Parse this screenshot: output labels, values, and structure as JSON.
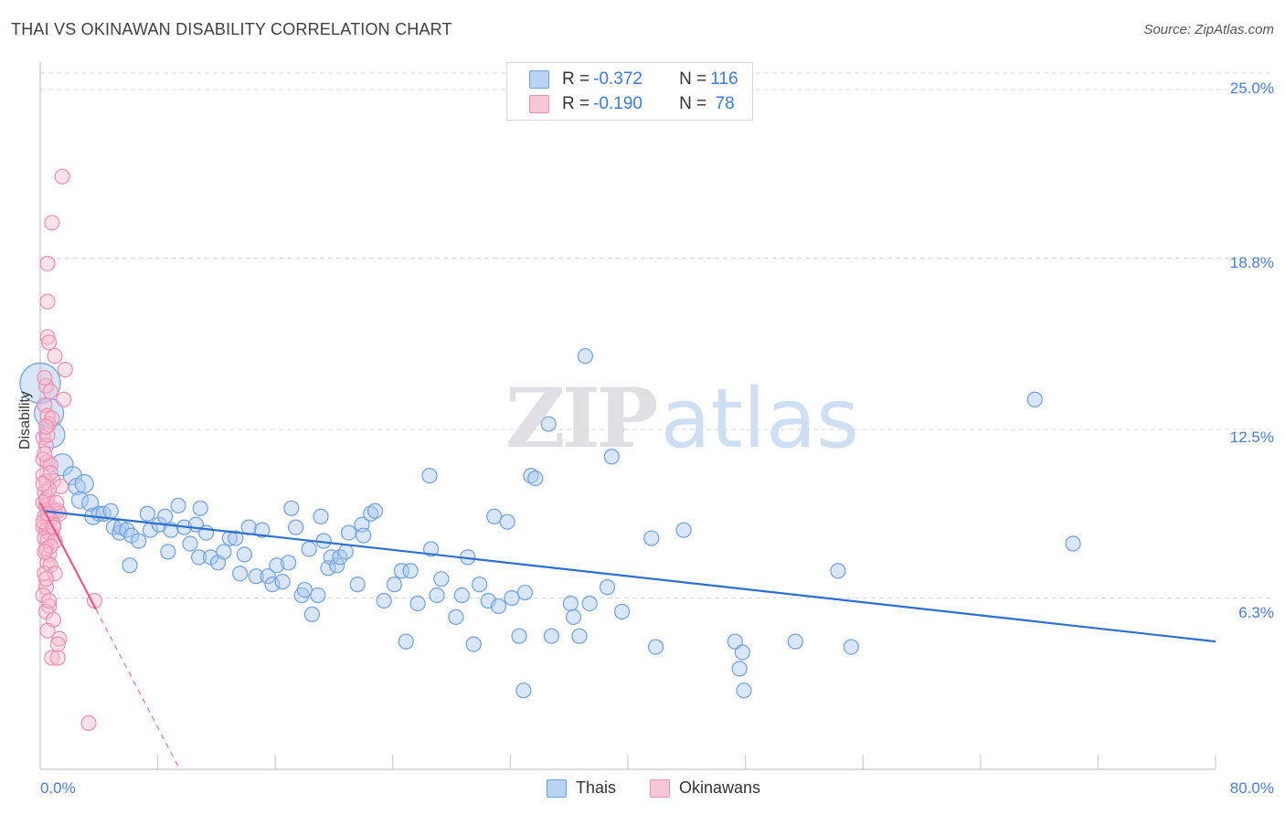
{
  "title": "THAI VS OKINAWAN DISABILITY CORRELATION CHART",
  "source": "Source: ZipAtlas.com",
  "watermark": {
    "zip": "ZIP",
    "atlas": "atlas"
  },
  "legend": {
    "rows": [
      {
        "r_label": "R = ",
        "r_value": "-0.372",
        "n_label": "N = ",
        "n_value": "116"
      },
      {
        "r_label": "R = ",
        "r_value": "-0.190",
        "n_label": "N = ",
        "n_value": " 78"
      }
    ]
  },
  "colors": {
    "thai_fill": "#a9c8f0",
    "thai_stroke": "#6fa0e0",
    "thai_line": "#2b6fd1",
    "oki_fill": "#f8bcd0",
    "oki_stroke": "#ec8fb0",
    "oki_line": "#e8588a",
    "grid": "#d9d9d9",
    "axis_text": "#4a7fd4"
  },
  "chart_data": {
    "type": "scatter",
    "title": "THAI VS OKINAWAN DISABILITY CORRELATION CHART",
    "xlabel": "",
    "ylabel": "Disability",
    "xlim": [
      0,
      80
    ],
    "ylim": [
      0,
      25
    ],
    "x_tick_labels": [
      "0.0%",
      "80.0%"
    ],
    "y_ticks": [
      6.3,
      12.5,
      18.8,
      25.0
    ],
    "y_tick_labels": [
      "6.3%",
      "12.5%",
      "18.8%",
      "25.0%"
    ],
    "grid": true,
    "legend_position": "bottom-center",
    "series": [
      {
        "name": "Thais",
        "r": -0.372,
        "n": 116,
        "trend": {
          "x": [
            0.2,
            80
          ],
          "y": [
            9.5,
            4.7
          ]
        },
        "points": [
          [
            0.0,
            14.2,
            22
          ],
          [
            0.6,
            13.1,
            16
          ],
          [
            0.8,
            12.3,
            14
          ],
          [
            1.5,
            11.2,
            12
          ],
          [
            2.2,
            10.8,
            10
          ],
          [
            2.5,
            10.4,
            9
          ],
          [
            3.0,
            10.5,
            10
          ],
          [
            2.7,
            9.9,
            9
          ],
          [
            3.4,
            9.8,
            9
          ],
          [
            3.6,
            9.3,
            9
          ],
          [
            4.0,
            9.4,
            8
          ],
          [
            4.3,
            9.4,
            8
          ],
          [
            4.8,
            9.5,
            8
          ],
          [
            5.0,
            8.9,
            8
          ],
          [
            5.4,
            8.7,
            8
          ],
          [
            5.5,
            8.9,
            8
          ],
          [
            5.9,
            8.8,
            8
          ],
          [
            6.2,
            8.6,
            8
          ],
          [
            6.7,
            8.4,
            8
          ],
          [
            7.3,
            9.4,
            8
          ],
          [
            7.5,
            8.8,
            8
          ],
          [
            8.1,
            9.0,
            8
          ],
          [
            8.7,
            8.0,
            8
          ],
          [
            8.9,
            8.8,
            8
          ],
          [
            9.4,
            9.7,
            8
          ],
          [
            9.8,
            8.9,
            8
          ],
          [
            10.2,
            8.3,
            8
          ],
          [
            10.6,
            9.0,
            8
          ],
          [
            10.8,
            7.8,
            8
          ],
          [
            11.3,
            8.7,
            8
          ],
          [
            11.6,
            7.8,
            8
          ],
          [
            12.1,
            7.6,
            8
          ],
          [
            12.5,
            8.0,
            8
          ],
          [
            12.9,
            8.5,
            8
          ],
          [
            13.3,
            8.5,
            8
          ],
          [
            13.6,
            7.2,
            8
          ],
          [
            13.9,
            7.9,
            8
          ],
          [
            14.2,
            8.9,
            8
          ],
          [
            14.7,
            7.1,
            8
          ],
          [
            15.1,
            8.8,
            8
          ],
          [
            15.5,
            7.1,
            8
          ],
          [
            15.8,
            6.8,
            8
          ],
          [
            16.1,
            7.5,
            8
          ],
          [
            16.5,
            6.9,
            8
          ],
          [
            16.9,
            7.6,
            8
          ],
          [
            17.1,
            9.6,
            8
          ],
          [
            17.4,
            8.9,
            8
          ],
          [
            17.8,
            6.4,
            8
          ],
          [
            18.0,
            6.6,
            8
          ],
          [
            18.3,
            8.1,
            8
          ],
          [
            18.5,
            5.7,
            8
          ],
          [
            18.9,
            6.4,
            8
          ],
          [
            19.1,
            9.3,
            8
          ],
          [
            19.3,
            8.4,
            8
          ],
          [
            19.6,
            7.4,
            8
          ],
          [
            19.8,
            7.8,
            8
          ],
          [
            20.2,
            7.5,
            8
          ],
          [
            20.4,
            7.8,
            8
          ],
          [
            20.8,
            8.0,
            8
          ],
          [
            21.0,
            8.7,
            8
          ],
          [
            21.6,
            6.8,
            8
          ],
          [
            21.9,
            9.0,
            8
          ],
          [
            22.5,
            9.4,
            8
          ],
          [
            22.8,
            9.5,
            8
          ],
          [
            23.4,
            6.2,
            8
          ],
          [
            24.1,
            6.8,
            8
          ],
          [
            24.6,
            7.3,
            8
          ],
          [
            24.9,
            4.7,
            8
          ],
          [
            25.2,
            7.3,
            8
          ],
          [
            25.7,
            6.1,
            8
          ],
          [
            26.5,
            10.8,
            8
          ],
          [
            26.6,
            8.1,
            8
          ],
          [
            27.0,
            6.4,
            8
          ],
          [
            27.3,
            7.0,
            8
          ],
          [
            28.3,
            5.6,
            8
          ],
          [
            28.7,
            6.4,
            8
          ],
          [
            29.1,
            7.8,
            8
          ],
          [
            29.5,
            4.6,
            8
          ],
          [
            29.9,
            6.8,
            8
          ],
          [
            30.5,
            6.2,
            8
          ],
          [
            30.9,
            9.3,
            8
          ],
          [
            31.2,
            6.0,
            8
          ],
          [
            31.8,
            9.1,
            8
          ],
          [
            32.1,
            6.3,
            8
          ],
          [
            32.6,
            4.9,
            8
          ],
          [
            32.9,
            2.9,
            8
          ],
          [
            33.0,
            6.5,
            8
          ],
          [
            33.4,
            10.8,
            8
          ],
          [
            33.7,
            10.7,
            8
          ],
          [
            34.6,
            12.7,
            8
          ],
          [
            34.8,
            4.9,
            8
          ],
          [
            36.1,
            6.1,
            8
          ],
          [
            36.3,
            5.6,
            8
          ],
          [
            36.7,
            4.9,
            8
          ],
          [
            37.1,
            15.2,
            8
          ],
          [
            37.4,
            6.1,
            8
          ],
          [
            38.6,
            6.7,
            8
          ],
          [
            38.9,
            11.5,
            8
          ],
          [
            39.2,
            12.5,
            8
          ],
          [
            39.6,
            5.8,
            8
          ],
          [
            41.6,
            8.5,
            8
          ],
          [
            41.9,
            4.5,
            8
          ],
          [
            43.8,
            8.8,
            8
          ],
          [
            47.3,
            4.7,
            8
          ],
          [
            47.6,
            3.7,
            8
          ],
          [
            47.8,
            4.3,
            8
          ],
          [
            47.9,
            2.9,
            8
          ],
          [
            51.4,
            4.7,
            8
          ],
          [
            54.3,
            7.3,
            8
          ],
          [
            55.2,
            4.5,
            8
          ],
          [
            67.7,
            13.6,
            8
          ],
          [
            70.3,
            8.3,
            8
          ],
          [
            6.1,
            7.5,
            8
          ],
          [
            8.5,
            9.3,
            8
          ],
          [
            10.9,
            9.6,
            8
          ],
          [
            22.0,
            8.6,
            8
          ]
        ]
      },
      {
        "name": "Okinawans",
        "r": -0.19,
        "n": 78,
        "trend": {
          "x": [
            0,
            9.5
          ],
          "y": [
            9.8,
            0
          ]
        },
        "trend_solid_until_x": 3.8,
        "points": [
          [
            1.5,
            21.8,
            8
          ],
          [
            0.8,
            20.1,
            8
          ],
          [
            0.5,
            18.6,
            8
          ],
          [
            0.5,
            17.2,
            8
          ],
          [
            0.5,
            15.9,
            8
          ],
          [
            0.6,
            15.7,
            8
          ],
          [
            1.0,
            15.2,
            8
          ],
          [
            1.7,
            14.7,
            8
          ],
          [
            0.4,
            14.1,
            8
          ],
          [
            0.7,
            13.9,
            8
          ],
          [
            1.6,
            13.6,
            8
          ],
          [
            0.3,
            13.4,
            8
          ],
          [
            0.5,
            13.0,
            8
          ],
          [
            0.6,
            12.7,
            8
          ],
          [
            0.2,
            12.2,
            8
          ],
          [
            0.4,
            11.9,
            8
          ],
          [
            0.2,
            11.4,
            8
          ],
          [
            0.5,
            11.3,
            8
          ],
          [
            0.7,
            11.2,
            8
          ],
          [
            0.9,
            10.6,
            8
          ],
          [
            1.4,
            10.4,
            8
          ],
          [
            0.2,
            10.8,
            8
          ],
          [
            0.4,
            10.6,
            8
          ],
          [
            0.3,
            10.2,
            8
          ],
          [
            0.5,
            10.0,
            8
          ],
          [
            0.2,
            9.8,
            8
          ],
          [
            0.4,
            9.7,
            8
          ],
          [
            0.6,
            9.6,
            8
          ],
          [
            0.8,
            9.6,
            8
          ],
          [
            1.0,
            9.5,
            8
          ],
          [
            1.2,
            9.5,
            8
          ],
          [
            1.3,
            9.4,
            8
          ],
          [
            0.3,
            9.3,
            8
          ],
          [
            0.5,
            9.2,
            8
          ],
          [
            0.7,
            9.2,
            8
          ],
          [
            0.9,
            9.0,
            8
          ],
          [
            0.2,
            8.9,
            8
          ],
          [
            0.4,
            8.8,
            8
          ],
          [
            0.6,
            8.7,
            8
          ],
          [
            0.8,
            8.6,
            8
          ],
          [
            0.3,
            8.5,
            8
          ],
          [
            0.5,
            8.4,
            8
          ],
          [
            1.0,
            8.4,
            8
          ],
          [
            0.4,
            8.1,
            8
          ],
          [
            0.6,
            7.9,
            8
          ],
          [
            0.5,
            7.6,
            8
          ],
          [
            0.7,
            7.5,
            8
          ],
          [
            0.3,
            7.2,
            8
          ],
          [
            1.0,
            7.2,
            8
          ],
          [
            0.4,
            6.7,
            8
          ],
          [
            0.2,
            6.4,
            8
          ],
          [
            3.7,
            6.2,
            8
          ],
          [
            0.6,
            6.0,
            8
          ],
          [
            0.4,
            5.8,
            8
          ],
          [
            0.9,
            5.5,
            8
          ],
          [
            0.5,
            5.1,
            8
          ],
          [
            1.3,
            4.8,
            8
          ],
          [
            1.2,
            4.6,
            8
          ],
          [
            0.8,
            4.1,
            8
          ],
          [
            1.2,
            4.1,
            8
          ],
          [
            3.3,
            1.7,
            8
          ],
          [
            0.2,
            9.1,
            8
          ],
          [
            0.4,
            9.9,
            8
          ],
          [
            0.6,
            10.3,
            8
          ],
          [
            0.3,
            11.6,
            8
          ],
          [
            0.5,
            12.3,
            8
          ],
          [
            0.8,
            12.9,
            8
          ],
          [
            0.3,
            14.4,
            8
          ],
          [
            0.7,
            8.2,
            8
          ],
          [
            0.9,
            8.9,
            8
          ],
          [
            1.1,
            9.8,
            8
          ],
          [
            0.4,
            7.0,
            8
          ],
          [
            0.6,
            6.2,
            8
          ],
          [
            0.2,
            10.5,
            8
          ],
          [
            0.5,
            9.4,
            8
          ],
          [
            0.3,
            8.0,
            8
          ],
          [
            0.7,
            10.9,
            8
          ],
          [
            0.4,
            12.6,
            8
          ]
        ]
      }
    ]
  }
}
